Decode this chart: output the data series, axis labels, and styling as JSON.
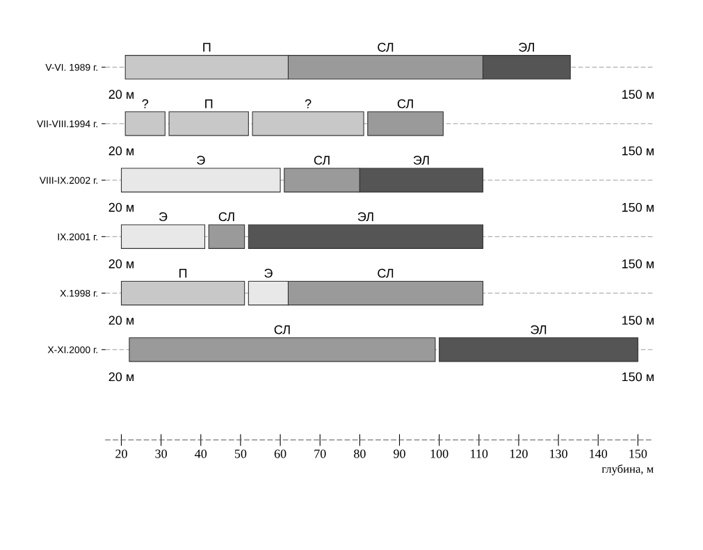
{
  "chart_data": {
    "type": "bar",
    "orientation": "horizontal",
    "xlabel": "глубина, м",
    "categories": [
      "V-VI. 1989 г.",
      "VII-VIII.1994 г.",
      "VIII-IX.2002 г.",
      "IX.2001 г.",
      "X.1998 г.",
      "X-XI.2000 г."
    ],
    "series": [
      {
        "base": [
          21,
          21,
          20,
          20,
          20,
          22
        ],
        "values": [
          41,
          10,
          40,
          21,
          31,
          77
        ],
        "colors": [
          "#c8c8c8",
          "#c8c8c8",
          "#e8e8e8",
          "#e8e8e8",
          "#c8c8c8",
          "#9a9a9a"
        ],
        "value_labels": [
          "П",
          "?",
          "Э",
          "Э",
          "П",
          "СЛ"
        ]
      },
      {
        "base": [
          62,
          32,
          61,
          42,
          52,
          100
        ],
        "values": [
          49,
          20,
          19,
          9,
          10,
          50
        ],
        "colors": [
          "#9a9a9a",
          "#c8c8c8",
          "#9a9a9a",
          "#9a9a9a",
          "#e8e8e8",
          "#555555"
        ],
        "value_labels": [
          "СЛ",
          "П",
          "СЛ",
          "СЛ",
          "Э",
          "ЭЛ"
        ]
      },
      {
        "base": [
          111,
          53,
          80,
          52,
          62,
          null
        ],
        "values": [
          22,
          28,
          31,
          59,
          49,
          null
        ],
        "colors": [
          "#555555",
          "#c8c8c8",
          "#555555",
          "#555555",
          "#9a9a9a",
          null
        ],
        "value_labels": [
          "ЭЛ",
          "?",
          "ЭЛ",
          "ЭЛ",
          "СЛ",
          null
        ]
      },
      {
        "base": [
          null,
          82,
          null,
          null,
          null,
          null
        ],
        "values": [
          null,
          19,
          null,
          null,
          null,
          null
        ],
        "colors": [
          null,
          "#9a9a9a",
          null,
          null,
          null,
          null
        ],
        "value_labels": [
          null,
          "СЛ",
          null,
          null,
          null,
          null
        ]
      }
    ],
    "xlim": [
      16,
      154
    ],
    "xticks": [
      20,
      30,
      40,
      50,
      60,
      70,
      80,
      90,
      100,
      110,
      120,
      130,
      140,
      150
    ],
    "grid": "y",
    "annotations": [
      "20 м",
      "150 м",
      "20 м",
      "150 м",
      "20 м",
      "150 м",
      "20 м",
      "150 м",
      "20 м",
      "150 м",
      "20 м",
      "150 м"
    ]
  }
}
